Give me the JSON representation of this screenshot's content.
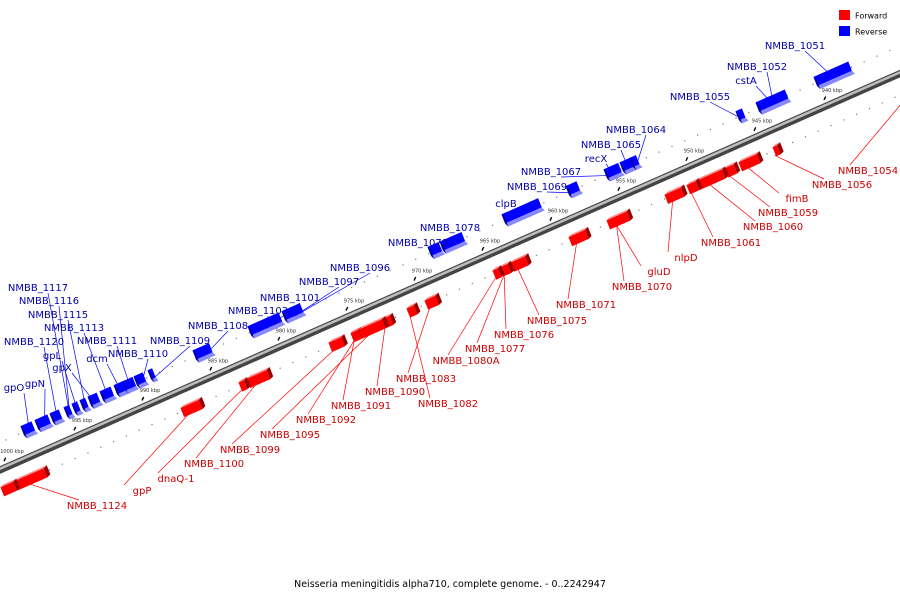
{
  "legend": {
    "forward_label": "Forward",
    "reverse_label": "Reverse",
    "forward_color": "#ff0000",
    "reverse_color": "#0000ff"
  },
  "caption": "Neisseria meningitidis alpha710, complete genome. - 0..2242947",
  "ticks": [
    "940 kbp",
    "945 kbp",
    "950 kbp",
    "955 kbp",
    "960 kbp",
    "965 kbp",
    "970 kbp",
    "975 kbp",
    "980 kbp",
    "985 kbp",
    "990 kbp",
    "995 kbp",
    "1000 kbp"
  ],
  "reverse_labels": [
    "NMBB_1051",
    "NMBB_1052",
    "cstA",
    "NMBB_1055",
    "NMBB_1064",
    "NMBB_1065",
    "recX",
    "NMBB_1067",
    "NMBB_1069",
    "clpB",
    "NMBB_1078",
    "NMBB_1079",
    "NMBB_1096",
    "NMBB_1097",
    "NMBB_1101",
    "NMBB_1103",
    "NMBB_1108",
    "NMBB_1109",
    "NMBB_1110",
    "NMBB_1111",
    "dcm",
    "NMBB_1113",
    "gpX",
    "NMBB_1115",
    "gpL",
    "NMBB_1116",
    "NMBB_1120",
    "NMBB_1117",
    "gpN",
    "gpO"
  ],
  "forward_labels": [
    "NMBB_1054",
    "NMBB_1056",
    "fimB",
    "NMBB_1059",
    "NMBB_1060",
    "NMBB_1061",
    "nlpD",
    "gluD",
    "NMBB_1070",
    "NMBB_1071",
    "NMBB_1075",
    "NMBB_1076",
    "NMBB_1077",
    "NMBB_1080A",
    "NMBB_1083",
    "NMBB_1082",
    "NMBB_1090",
    "NMBB_1091",
    "NMBB_1092",
    "NMBB_1095",
    "NMBB_1099",
    "NMBB_1100",
    "dnaQ-1",
    "gpP",
    "NMBB_1124"
  ]
}
